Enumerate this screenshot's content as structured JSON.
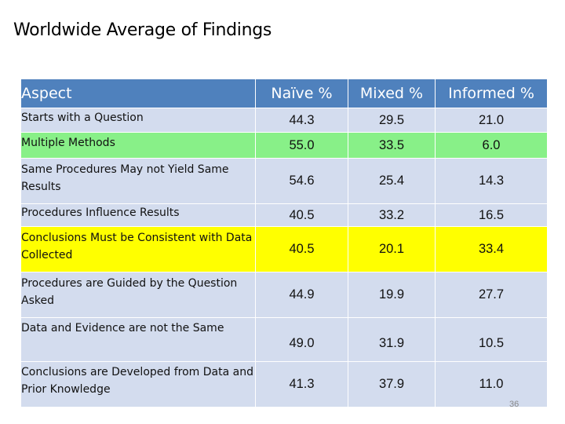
{
  "title": "Worldwide Average of Findings",
  "table": {
    "columns": [
      "Aspect",
      "Naïve %",
      "Mixed %",
      "Informed  %"
    ],
    "rows": [
      {
        "aspect": "Starts with a Question",
        "naive": "44.3",
        "mixed": "29.5",
        "informed": "21.0",
        "highlight": "blue"
      },
      {
        "aspect": "Multiple Methods",
        "naive": "55.0",
        "mixed": "33.5",
        "informed": "6.0",
        "highlight": "green"
      },
      {
        "aspect": "Same Procedures May not Yield Same Results",
        "naive": "54.6",
        "mixed": "25.4",
        "informed": "14.3",
        "highlight": "blue"
      },
      {
        "aspect": "Procedures Influence Results",
        "naive": "40.5",
        "mixed": "33.2",
        "informed": "16.5",
        "highlight": "blue"
      },
      {
        "aspect": "Conclusions Must be Consistent with Data Collected",
        "naive": "40.5",
        "mixed": "20.1",
        "informed": "33.4",
        "highlight": "yellow"
      },
      {
        "aspect": "Procedures are Guided by the Question Asked",
        "naive": "44.9",
        "mixed": "19.9",
        "informed": "27.7",
        "highlight": "blue"
      },
      {
        "aspect": "Data and Evidence are not the Same",
        "naive": "49.0",
        "mixed": "31.9",
        "informed": "10.5",
        "highlight": "blue"
      },
      {
        "aspect": "Conclusions are Developed from Data and Prior Knowledge",
        "naive": "41.3",
        "mixed": "37.9",
        "informed": "11.0",
        "highlight": "blue"
      }
    ]
  },
  "colors": {
    "header": "#4f81bd",
    "row_blue": "#d3dcee",
    "row_green": "#88f088",
    "row_yellow": "#ffff00"
  },
  "page_number": "36"
}
